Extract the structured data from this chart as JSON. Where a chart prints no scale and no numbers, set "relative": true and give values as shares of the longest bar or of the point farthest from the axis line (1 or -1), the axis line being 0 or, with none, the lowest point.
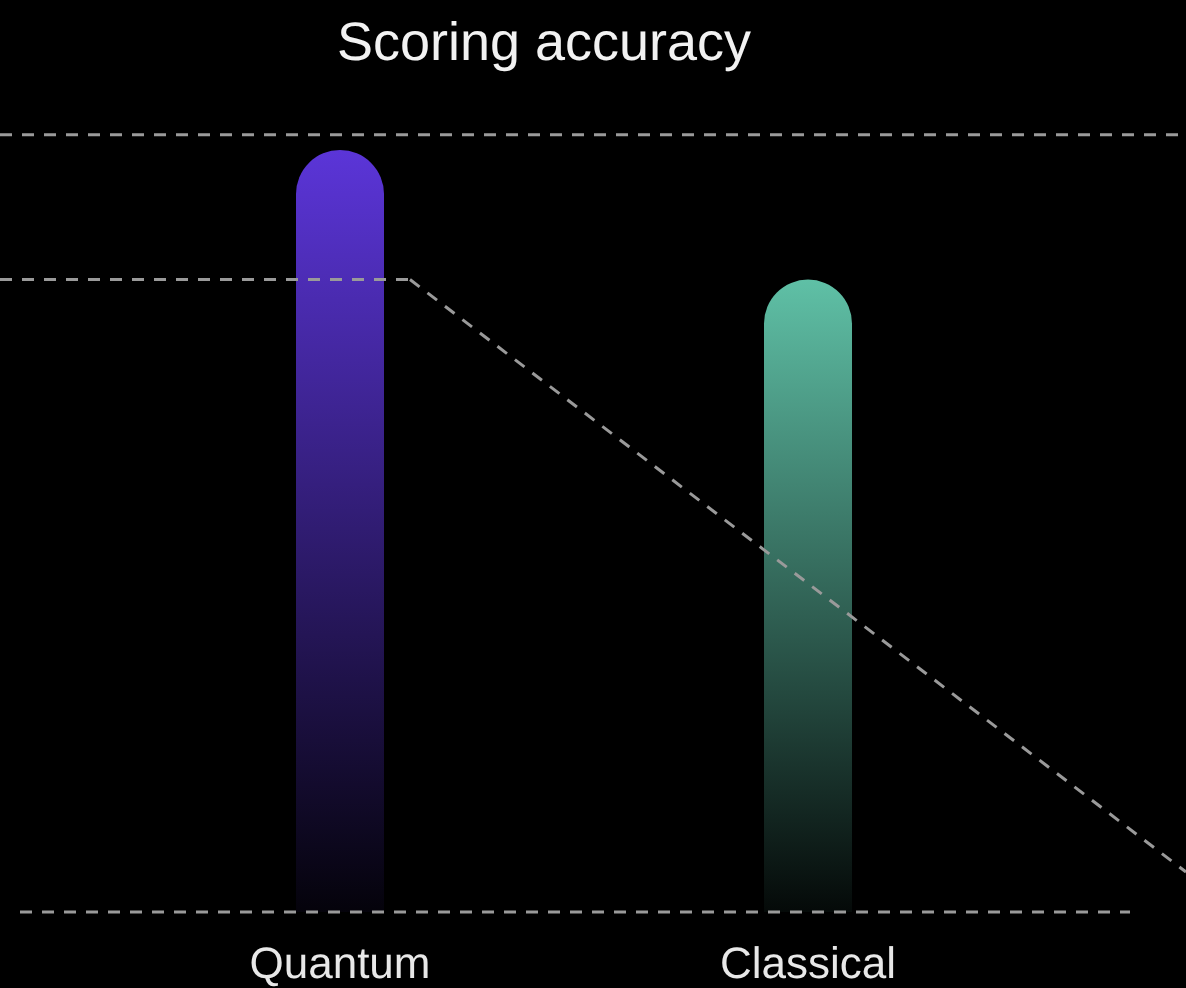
{
  "chart_data": {
    "type": "bar",
    "title": "Scoring accuracy",
    "relative": true,
    "categories": [
      "Quantum",
      "Classical"
    ],
    "values": [
      1,
      0.83
    ],
    "colors": [
      "#5b35d8",
      "#5fc0a6"
    ],
    "ref_lines": [
      {
        "axis": "y",
        "value": 1.02,
        "line_style": "dashed",
        "color": "#9a9a9a"
      },
      {
        "axis": "y",
        "value": 0.83,
        "line_style": "dashed",
        "color": "#9a9a9a"
      }
    ]
  }
}
